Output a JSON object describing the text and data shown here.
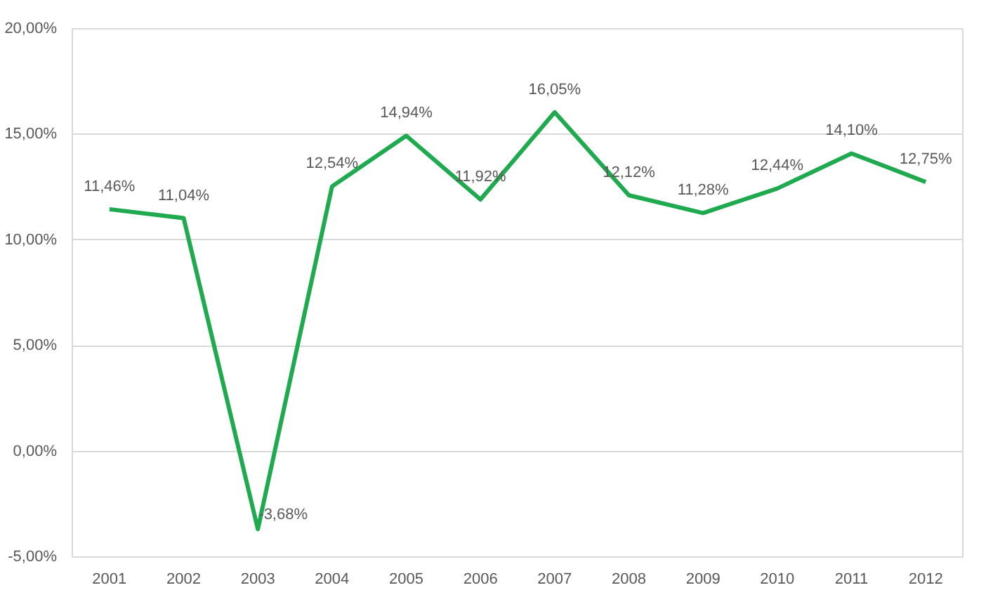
{
  "chart_data": {
    "type": "line",
    "categories": [
      "2001",
      "2002",
      "2003",
      "2004",
      "2005",
      "2006",
      "2007",
      "2008",
      "2009",
      "2010",
      "2011",
      "2012"
    ],
    "series": [
      {
        "color": "#1faa4f",
        "values": [
          11.46,
          11.04,
          -3.68,
          12.54,
          14.94,
          11.92,
          16.05,
          12.12,
          11.28,
          12.44,
          14.1,
          12.75
        ],
        "value_labels": [
          "11,46%",
          "11,04%",
          "-3,68%",
          "12,54%",
          "14,94%",
          "11,92%",
          "16,05%",
          "12,12%",
          "11,28%",
          "12,44%",
          "14,10%",
          "12,75%"
        ]
      }
    ],
    "ylim": [
      -5,
      20
    ],
    "yticks": [
      {
        "value": -5,
        "label": "-5,00%"
      },
      {
        "value": 0,
        "label": "0,00%"
      },
      {
        "value": 5,
        "label": "5,00%"
      },
      {
        "value": 10,
        "label": "10,00%"
      },
      {
        "value": 15,
        "label": "15,00%"
      },
      {
        "value": 20,
        "label": "20,00%"
      }
    ],
    "grid": "y",
    "marker": "none",
    "line_style": "solid"
  }
}
